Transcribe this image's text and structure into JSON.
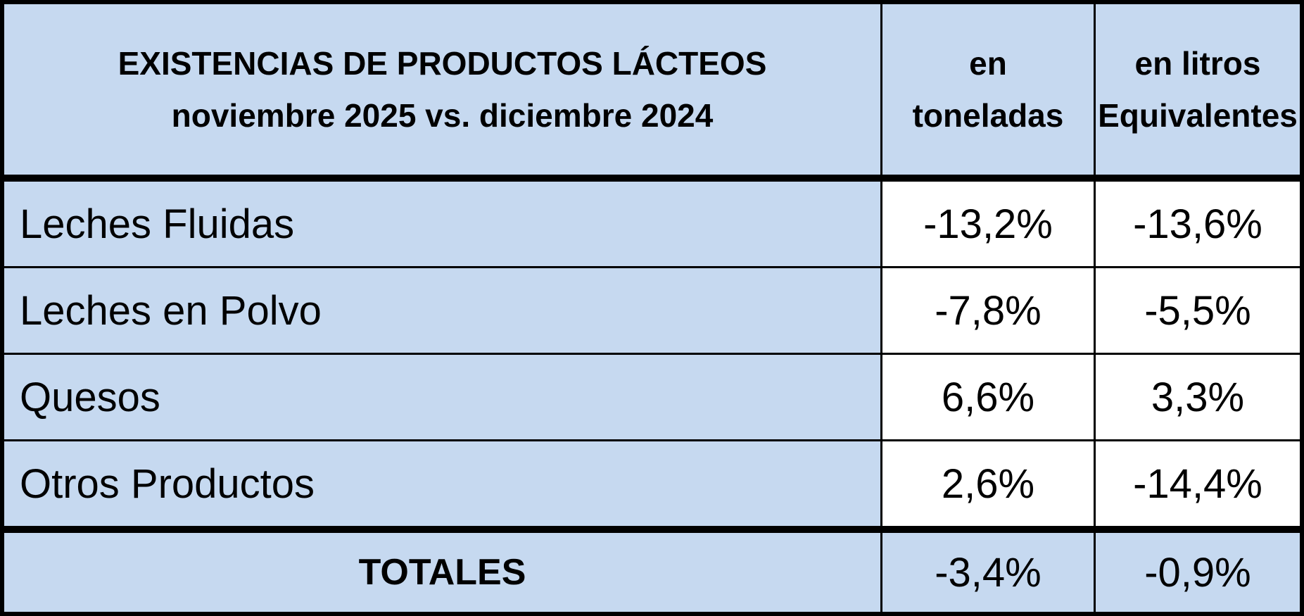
{
  "table": {
    "title_line1": "EXISTENCIAS DE PRODUCTOS LÁCTEOS",
    "title_line2": "noviembre 2025 vs. diciembre 2024",
    "col_toneladas_line1": "en",
    "col_toneladas_line2": "toneladas",
    "col_litros_line1": "en litros",
    "col_litros_line2": "Equivalentes",
    "rows": [
      {
        "label": "Leches Fluidas",
        "toneladas": "-13,2%",
        "litros": "-13,6%"
      },
      {
        "label": "Leches en Polvo",
        "toneladas": "-7,8%",
        "litros": "-5,5%"
      },
      {
        "label": "Quesos",
        "toneladas": "6,6%",
        "litros": "3,3%"
      },
      {
        "label": "Otros Productos",
        "toneladas": "2,6%",
        "litros": "-14,4%"
      }
    ],
    "totals": {
      "label": "TOTALES",
      "toneladas": "-3,4%",
      "litros": "-0,9%"
    }
  },
  "colors": {
    "cell_blue": "#c6d9f0",
    "cell_white": "#ffffff",
    "border_black": "#000000"
  },
  "chart_data": {
    "type": "table",
    "title": "EXISTENCIAS DE PRODUCTOS LÁCTEOS noviembre 2025 vs. diciembre 2024",
    "columns": [
      "en toneladas",
      "en litros Equivalentes"
    ],
    "categories": [
      "Leches Fluidas",
      "Leches en Polvo",
      "Quesos",
      "Otros Productos"
    ],
    "series": [
      {
        "name": "en toneladas",
        "values_pct": [
          -13.2,
          -7.8,
          6.6,
          2.6
        ]
      },
      {
        "name": "en litros Equivalentes",
        "values_pct": [
          -13.6,
          -5.5,
          3.3,
          -14.4
        ]
      }
    ],
    "totals": {
      "label": "TOTALES",
      "en_toneladas_pct": -3.4,
      "en_litros_equivalentes_pct": -0.9
    },
    "value_format": "percent, comma decimal separator",
    "layout": "header row and first column light blue, data value cells white, totals row light blue, thick black separators under header and above totals"
  }
}
